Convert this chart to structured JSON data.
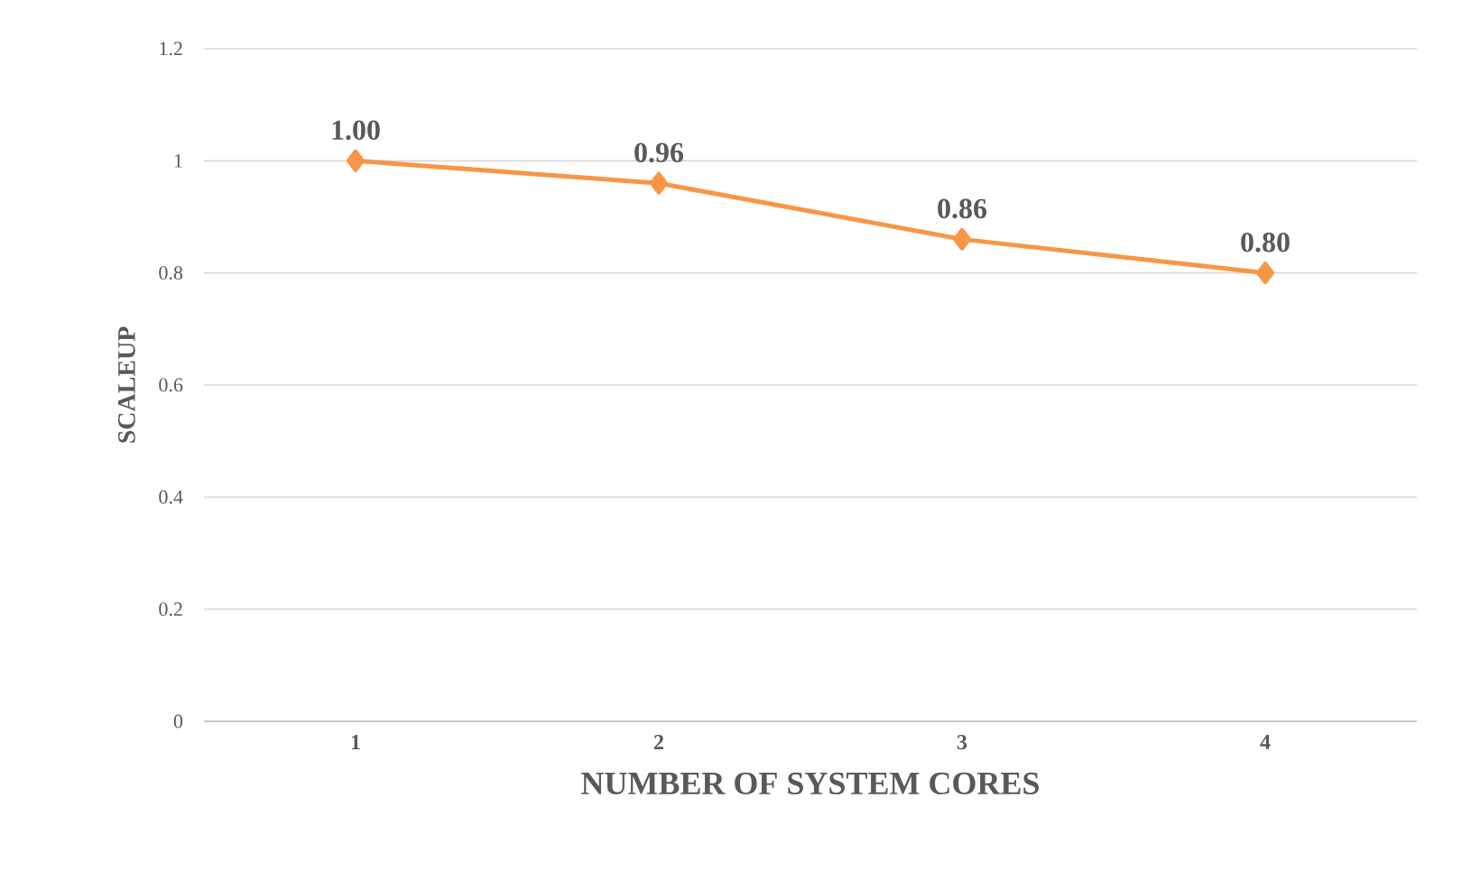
{
  "chart_data": {
    "type": "line",
    "xlabel": "NUMBER OF SYSTEM CORES",
    "ylabel": "SCALEUP",
    "categories": [
      "1",
      "2",
      "3",
      "4"
    ],
    "values": [
      1.0,
      0.96,
      0.86,
      0.8
    ],
    "value_labels": [
      "1.00",
      "0.96",
      "0.86",
      "0.80"
    ],
    "color": "#f79646",
    "marker": "diamond",
    "line_style": "solid",
    "grid": "y",
    "ylim": [
      0,
      1.2
    ],
    "yticks": [
      0,
      0.2,
      0.4,
      0.6,
      0.8,
      1,
      1.2
    ]
  }
}
